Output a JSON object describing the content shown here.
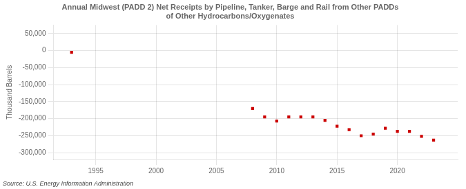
{
  "chart_data": {
    "type": "scatter",
    "title": "Annual Midwest (PADD 2) Net Receipts by Pipeline, Tanker, Barge and Rail from Other PADDs\nof Other Hydrocarbons/Oxygenates",
    "ylabel": "Thousand Barrels",
    "annotations": [
      "Source: U.S. Energy Information Administration"
    ],
    "x": [
      1993,
      2008,
      2009,
      2010,
      2011,
      2012,
      2013,
      2014,
      2015,
      2016,
      2017,
      2018,
      2019,
      2020,
      2021,
      2022,
      2023
    ],
    "values": [
      -5000,
      -170000,
      -195000,
      -207000,
      -195000,
      -195000,
      -195000,
      -205000,
      -222000,
      -232000,
      -250000,
      -245000,
      -228000,
      -237000,
      -237000,
      -252000,
      -263000
    ],
    "color": "#cc0000",
    "marker": "square",
    "xlim": [
      1991.5,
      2025
    ],
    "xticks": [
      1995,
      2000,
      2005,
      2010,
      2015,
      2020
    ],
    "ylim": [
      -320000,
      75000
    ],
    "yticks": [
      {
        "value": 50000,
        "label": "50,000"
      },
      0,
      {
        "value": -50000,
        "label": "-50,000"
      },
      {
        "value": -100000,
        "label": "-100,000"
      },
      {
        "value": -150000,
        "label": "-150,000"
      },
      {
        "value": -200000,
        "label": "-200,000"
      },
      {
        "value": -250000,
        "label": "-250,000"
      },
      {
        "value": -300000,
        "label": "-300,000"
      }
    ],
    "grid": true
  }
}
